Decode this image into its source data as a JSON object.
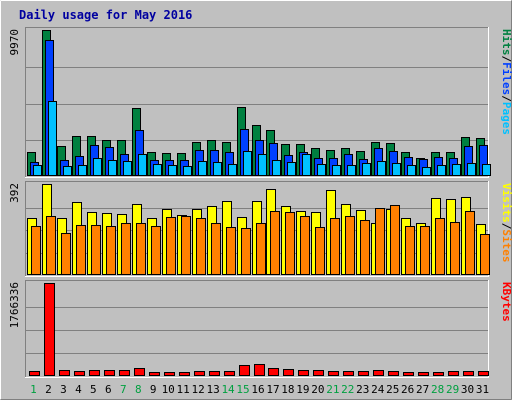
{
  "chart_data": {
    "type": "bar",
    "title": "Daily usage for May 2016",
    "categories": [
      "1",
      "2",
      "3",
      "4",
      "5",
      "6",
      "7",
      "8",
      "9",
      "10",
      "11",
      "12",
      "13",
      "14",
      "15",
      "16",
      "17",
      "18",
      "19",
      "20",
      "21",
      "22",
      "23",
      "24",
      "25",
      "26",
      "27",
      "28",
      "29",
      "30",
      "31"
    ],
    "weekend_days": [
      "1",
      "7",
      "8",
      "14",
      "15",
      "21",
      "22",
      "28",
      "29"
    ],
    "panels": [
      {
        "id": "hits",
        "ymax_label": "9970",
        "ymax": 9970,
        "legend": [
          {
            "text": "Pages",
            "color": "#00c0ff"
          },
          {
            "text": "/",
            "color": "#000000"
          },
          {
            "text": "Files",
            "color": "#0040ff"
          },
          {
            "text": "/",
            "color": "#000000"
          },
          {
            "text": "Hits",
            "color": "#008040"
          }
        ],
        "series": [
          {
            "name": "Hits",
            "color": "#008040",
            "values": [
              1580,
              9970,
              1980,
              2650,
              2650,
              2380,
              2400,
              4610,
              1580,
              1540,
              1520,
              2250,
              2400,
              2260,
              4650,
              3440,
              3100,
              2110,
              2100,
              1880,
              1750,
              1890,
              1630,
              2270,
              2230,
              1610,
              1160,
              1590,
              1580,
              2610,
              2560
            ]
          },
          {
            "name": "Files",
            "color": "#0040ff",
            "values": [
              870,
              9250,
              1060,
              1340,
              2050,
              1950,
              1460,
              3100,
              1000,
              1050,
              1050,
              1700,
              1690,
              1570,
              3170,
              2430,
              2210,
              1380,
              1600,
              1180,
              1150,
              1410,
              1110,
              1830,
              1620,
              1220,
              1080,
              1230,
              1200,
              2020,
              2070
            ]
          },
          {
            "name": "Pages",
            "color": "#00c0ff",
            "values": [
              680,
              5080,
              650,
              680,
              1150,
              1010,
              980,
              1420,
              790,
              720,
              650,
              950,
              900,
              730,
              1620,
              1440,
              1050,
              920,
              1420,
              790,
              700,
              720,
              840,
              960,
              850,
              680,
              580,
              700,
              750,
              810,
              770
            ]
          }
        ]
      },
      {
        "id": "visits",
        "ymax_label": "392",
        "ymax": 392,
        "legend": [
          {
            "text": "Sites",
            "color": "#ff8000"
          },
          {
            "text": "/",
            "color": "#000000"
          },
          {
            "text": "Visits",
            "color": "#ffff00"
          }
        ],
        "series": [
          {
            "name": "Visits",
            "color": "#ffff00",
            "values": [
              246,
              392,
              244,
              315,
              268,
              265,
              261,
              303,
              245,
              281,
              255,
              282,
              298,
              317,
              250,
              316,
              371,
              294,
              276,
              269,
              364,
              304,
              277,
              222,
              284,
              245,
              224,
              329,
              328,
              336,
              217
            ]
          },
          {
            "name": "Sites",
            "color": "#ff8000",
            "values": [
              209,
              254,
              180,
              214,
              214,
              211,
              224,
              222,
              207,
              248,
              252,
              244,
              224,
              204,
              199,
              220,
              276,
              268,
              254,
              204,
              243,
              254,
              236,
              289,
              300,
              211,
              208,
              242,
              226,
              274,
              176
            ]
          }
        ]
      },
      {
        "id": "kbytes",
        "ymax_label": "1766336",
        "ymax": 1766336,
        "legend": [
          {
            "text": "KBytes",
            "color": "#ff0000"
          }
        ],
        "series": [
          {
            "name": "KBytes",
            "color": "#ff0000",
            "values": [
              82000,
              1766336,
              104000,
              86000,
              101000,
              88000,
              88000,
              142000,
              58000,
              66000,
              57000,
              68000,
              72000,
              76000,
              188000,
              213000,
              134000,
              112000,
              96000,
              97000,
              85000,
              76000,
              86000,
              92000,
              77000,
              62000,
              60000,
              64000,
              71000,
              80000,
              75000
            ]
          }
        ]
      }
    ]
  }
}
